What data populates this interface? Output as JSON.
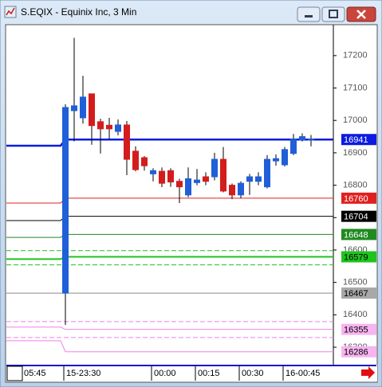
{
  "window": {
    "title": "S.EQIX - Equinix Inc, 3 Min"
  },
  "chart_data": {
    "type": "candlestick",
    "x_start_label": "05:45",
    "categories": [
      "15-23:30",
      null,
      null,
      null,
      null,
      null,
      null,
      null,
      null,
      null,
      "00:00",
      null,
      null,
      null,
      null,
      "00:15",
      null,
      null,
      null,
      null,
      "00:30",
      null,
      null,
      null,
      null,
      "16-00:45",
      null,
      null,
      null
    ],
    "open": [
      16467,
      17030,
      17008,
      17082,
      16996,
      16985,
      16966,
      16986,
      16905,
      16885,
      16835,
      16843,
      16845,
      16812,
      16770,
      16808,
      16826,
      16826,
      16880,
      16800,
      16770,
      16812,
      16812,
      16795,
      16875,
      16863,
      16898,
      16940,
      16941
    ],
    "high": [
      17050,
      17255,
      17138,
      17082,
      17005,
      17008,
      17003,
      16998,
      16920,
      16890,
      16852,
      16855,
      16852,
      16820,
      16855,
      16850,
      16840,
      16900,
      16918,
      16805,
      16812,
      16835,
      16840,
      16893,
      16895,
      16918,
      16958,
      16960,
      16955
    ],
    "low": [
      16369,
      16935,
      16990,
      16925,
      16898,
      16942,
      16954,
      16831,
      16843,
      16845,
      16812,
      16794,
      16795,
      16745,
      16763,
      16800,
      16800,
      16815,
      16778,
      16757,
      16760,
      16770,
      16800,
      16790,
      16860,
      16858,
      16893,
      16935,
      16920
    ],
    "close": [
      17040,
      17045,
      17072,
      16984,
      16974,
      16974,
      16986,
      16880,
      16848,
      16860,
      16845,
      16806,
      16810,
      16795,
      16820,
      16816,
      16812,
      16880,
      16782,
      16770,
      16806,
      16826,
      16826,
      16880,
      16882,
      16910,
      16942,
      16950,
      16942
    ],
    "up_color": "#1f5fd8",
    "down_color": "#d41c1c",
    "ylim": [
      16246,
      17293
    ],
    "yticks": [
      16300,
      16400,
      16500,
      16600,
      16700,
      16800,
      16900,
      17000,
      17100,
      17200
    ],
    "levels": [
      {
        "value": 16941,
        "prior": 16922,
        "color": "#0b1be0",
        "label_bg": "#0b1be0",
        "text_color": "#ffffff"
      },
      {
        "value": 16760,
        "prior": 16745,
        "color": "#e02020",
        "label_bg": "#e02020",
        "text_color": "#ffffff"
      },
      {
        "value": 16704,
        "prior": 16691,
        "color": "#000000",
        "label_bg": "#000000",
        "text_color": "#ffffff"
      },
      {
        "value": 16648,
        "prior": 16639,
        "color": "#208a20",
        "label_bg": "#208a20",
        "text_color": "#ffffff"
      },
      {
        "value": 16579,
        "prior": 16572,
        "color": "#1ec41e",
        "label_bg": "#1ec41e",
        "text_color": "#000000"
      },
      {
        "value": 16467,
        "prior": 16467,
        "color": "#8a8a8a",
        "label_bg": "#a8a8a8",
        "text_color": "#000000"
      },
      {
        "value": 16355,
        "prior": 16362,
        "color": "#f080e8",
        "label_bg": "#f7b4f0",
        "text_color": "#000000"
      },
      {
        "value": 16286,
        "prior": 16320,
        "color": "#f080e8",
        "label_bg": "#f7b4f0",
        "text_color": "#000000"
      }
    ],
    "dashed_levels": [
      {
        "value": 16598,
        "color": "#1ec41e"
      },
      {
        "value": 16554,
        "color": "#1ec41e"
      },
      {
        "value": 16379,
        "color": "#f080e8"
      },
      {
        "value": 16330,
        "color": "#f080e8"
      }
    ]
  }
}
